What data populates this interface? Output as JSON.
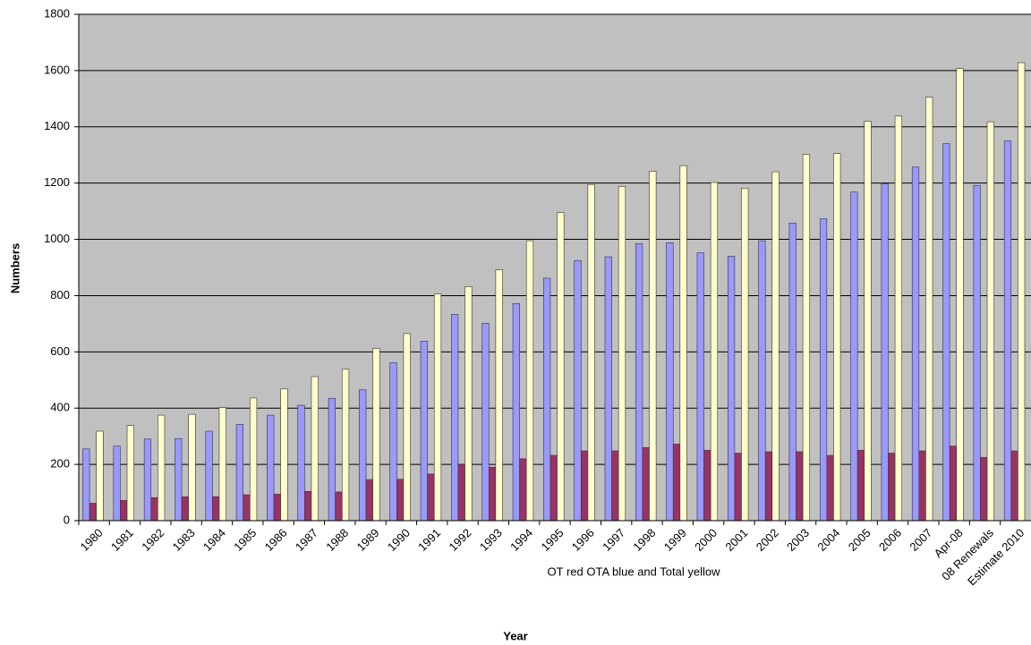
{
  "chart_data": {
    "type": "bar",
    "y_label": "Numbers",
    "x_label": "Year",
    "annotation": "OT red  OTA blue and Total yellow",
    "categories": [
      "1980",
      "1981",
      "1982",
      "1983",
      "1984",
      "1985",
      "1986",
      "1987",
      "1988",
      "1989",
      "1990",
      "1991",
      "1992",
      "1993",
      "1994",
      "1995",
      "1996",
      "1997",
      "1998",
      "1999",
      "2000",
      "2001",
      "2002",
      "2003",
      "2004",
      "2005",
      "2006",
      "2007",
      "Apr-08",
      "08 Renewals",
      "Estimate 2010"
    ],
    "series": [
      {
        "color": "#9999ff",
        "values": [
          255,
          265,
          290,
          292,
          318,
          342,
          375,
          410,
          435,
          465,
          562,
          638,
          733,
          702,
          772,
          862,
          925,
          938,
          985,
          988,
          952,
          940,
          995,
          1058,
          1073,
          1168,
          1198,
          1257,
          1340,
          1192,
          1350
        ]
      },
      {
        "color": "#993366",
        "values": [
          62,
          72,
          82,
          85,
          85,
          92,
          94,
          104,
          102,
          146,
          147,
          166,
          200,
          190,
          220,
          232,
          248,
          248,
          260,
          272,
          250,
          240,
          245,
          245,
          232,
          250,
          240,
          248,
          265,
          225,
          248
        ]
      },
      {
        "color": "#ffffcc",
        "values": [
          318,
          338,
          375,
          378,
          402,
          436,
          468,
          512,
          538,
          612,
          665,
          806,
          832,
          892,
          995,
          1095,
          1195,
          1188,
          1242,
          1262,
          1202,
          1182,
          1240,
          1302,
          1305,
          1420,
          1438,
          1505,
          1607,
          1418,
          1628
        ]
      }
    ],
    "ylim": [
      0,
      1800
    ],
    "yticks": [
      0,
      200,
      400,
      600,
      800,
      1000,
      1200,
      1400,
      1600,
      1800
    ],
    "grid": true,
    "background": "#c0c0c0"
  }
}
